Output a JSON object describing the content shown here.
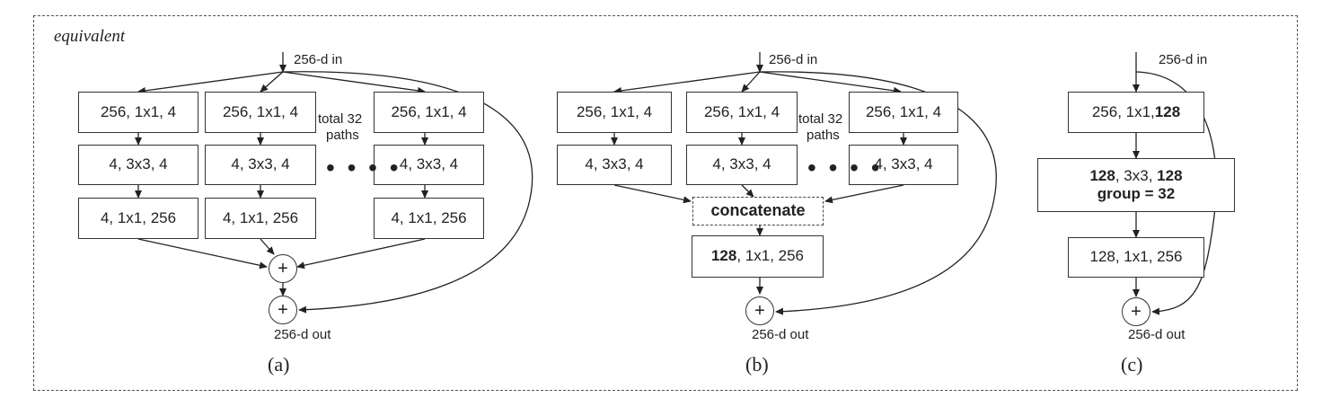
{
  "equivalent_label": "equivalent",
  "in_label": "256-d in",
  "out_label": "256-d out",
  "total_paths_line1": "total 32",
  "total_paths_line2": "paths",
  "ellipsis": "• • • •",
  "plus_symbol": "+",
  "panel_a": {
    "caption": "(a)",
    "row1": "256, 1x1, 4",
    "row2": "4, 3x3, 4",
    "row3": "4, 1x1, 256"
  },
  "panel_b": {
    "caption": "(b)",
    "row1": "256, 1x1, 4",
    "row2": "4, 3x3, 4",
    "concat": "concatenate",
    "final_bold": "128",
    "final_rest": ", 1x1, 256"
  },
  "panel_c": {
    "caption": "(c)",
    "row1_plain": "256, 1x1, ",
    "row1_bold": "128",
    "row2_bold_a": "128",
    "row2_plain": ", 3x3, ",
    "row2_bold_b": "128",
    "row2_line2": "group = 32",
    "row3": "128, 1x1, 256"
  }
}
